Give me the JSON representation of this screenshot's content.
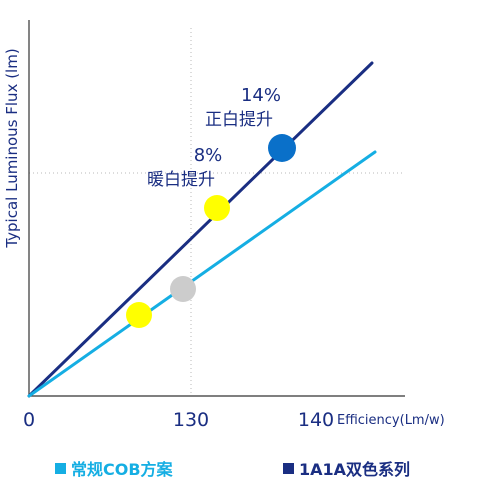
{
  "chart_data": {
    "type": "line",
    "title": "",
    "ylabel": "Typical Luminous Flux (lm)",
    "xlabel": "Efficiency(Lm/w)",
    "x_ticks": [
      {
        "value": 0,
        "label": "0"
      },
      {
        "value": 130,
        "label": "130"
      },
      {
        "value": 140,
        "label": "140"
      }
    ],
    "grid": "dotted reference lines at x=130 and one flux level",
    "series": [
      {
        "name": "1A1A双色系列",
        "color": "#1a2e82"
      },
      {
        "name": "常规COB方案",
        "color": "#15aee3"
      }
    ],
    "markers": [
      {
        "label": "light-grey-marker",
        "color": "#cccccc"
      },
      {
        "label": "yellow-marker-lower",
        "color": "#ffff00"
      },
      {
        "label": "yellow-marker-upper",
        "color": "#ffff00"
      },
      {
        "label": "blue-marker",
        "color": "#0a70c9"
      }
    ],
    "annotations": [
      {
        "percent": "8%",
        "text": "暖白提升"
      },
      {
        "percent": "14%",
        "text": "正白提升"
      }
    ]
  },
  "legend": [
    {
      "label": "常规COB方案",
      "color": "#15aee3"
    },
    {
      "label": "1A1A双色系列",
      "color": "#1a2e82"
    }
  ]
}
